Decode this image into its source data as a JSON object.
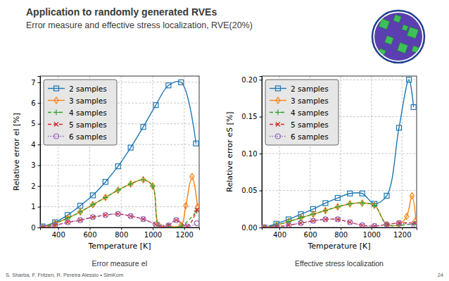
{
  "header": {
    "title": "Application to randomly generated RVEs",
    "subtitle": "Error measure and effective stress localization, RVE(20%)"
  },
  "footer": {
    "authors": "S. Sharba, F. Fritzen, R. Pereira Alessio • SimKom",
    "page": 24
  },
  "chart_data": [
    {
      "type": "line",
      "caption": "Error measure eI",
      "xlabel": "Temperature [K]",
      "ylabel": "Relative error eI [%]",
      "xlim": [
        285,
        1295
      ],
      "xticks": [
        400,
        600,
        800,
        1000,
        1200
      ],
      "ylim": [
        0,
        7.3
      ],
      "yticks": [
        0,
        1,
        2,
        3,
        4,
        5,
        6,
        7
      ],
      "grid": true,
      "legend": "upper left",
      "series": [
        {
          "name": "2 samples",
          "color": "#1f77b4",
          "marker": "square",
          "line_style": "solid",
          "x": [
            300,
            380,
            460,
            540,
            620,
            700,
            780,
            860,
            940,
            1020,
            1100,
            1180,
            1275
          ],
          "values": [
            0.05,
            0.25,
            0.6,
            1.05,
            1.55,
            2.2,
            2.95,
            3.85,
            4.85,
            5.9,
            6.85,
            7.0,
            4.05
          ]
        },
        {
          "name": "3 samples",
          "color": "#ff7f0e",
          "marker": "diamond",
          "line_style": "solid",
          "x": [
            300,
            380,
            460,
            540,
            620,
            700,
            780,
            860,
            940,
            1000,
            1040,
            1100,
            1180,
            1210,
            1250,
            1285
          ],
          "values": [
            0.0,
            0.2,
            0.45,
            0.75,
            1.1,
            1.45,
            1.8,
            2.1,
            2.3,
            2.0,
            0.1,
            0.05,
            0.1,
            1.05,
            2.45,
            1.0
          ]
        },
        {
          "name": "4 samples",
          "color": "#2ca02c",
          "marker": "plus",
          "line_style": "dashed",
          "x": [
            300,
            380,
            460,
            540,
            620,
            700,
            780,
            860,
            940,
            1000,
            1040,
            1100,
            1180,
            1280
          ],
          "values": [
            0.0,
            0.2,
            0.45,
            0.75,
            1.1,
            1.45,
            1.8,
            2.1,
            2.3,
            2.0,
            0.1,
            0.05,
            0.05,
            0.8
          ]
        },
        {
          "name": "5 samples",
          "color": "#d62728",
          "marker": "x",
          "line_style": "dashed",
          "x": [
            300,
            380,
            460,
            540,
            620,
            700,
            780,
            860,
            940,
            1020,
            1060,
            1100,
            1150,
            1220,
            1280
          ],
          "values": [
            0.0,
            0.1,
            0.25,
            0.35,
            0.5,
            0.6,
            0.65,
            0.55,
            0.4,
            0.15,
            0.0,
            0.1,
            0.35,
            0.05,
            0.85
          ]
        },
        {
          "name": "6 samples",
          "color": "#9467bd",
          "marker": "circle",
          "line_style": "dotted",
          "x": [
            300,
            380,
            460,
            540,
            620,
            700,
            780,
            860,
            940,
            1020,
            1060,
            1100,
            1150,
            1220,
            1280
          ],
          "values": [
            0.0,
            0.1,
            0.25,
            0.35,
            0.5,
            0.6,
            0.65,
            0.55,
            0.4,
            0.15,
            0.0,
            0.1,
            0.35,
            0.05,
            0.2
          ]
        }
      ]
    },
    {
      "type": "line",
      "caption": "Effective stress localization",
      "xlabel": "Temperature [K]",
      "ylabel": "Relative error eS [%]",
      "xlim": [
        285,
        1295
      ],
      "xticks": [
        400,
        600,
        800,
        1000,
        1200
      ],
      "ylim": [
        0,
        0.205
      ],
      "yticks": [
        {
          "value": 0,
          "label": "0.00"
        },
        {
          "value": 0.05,
          "label": "0.05"
        },
        {
          "value": 0.1,
          "label": "0.10"
        },
        {
          "value": 0.15,
          "label": "0.15"
        },
        {
          "value": 0.2,
          "label": "0.20"
        }
      ],
      "grid": true,
      "legend": "upper left",
      "series": [
        {
          "name": "2 samples",
          "color": "#1f77b4",
          "marker": "square",
          "line_style": "solid",
          "x": [
            300,
            380,
            460,
            540,
            620,
            700,
            780,
            860,
            940,
            1020,
            1100,
            1180,
            1245,
            1275
          ],
          "values": [
            0.0,
            0.005,
            0.011,
            0.018,
            0.025,
            0.033,
            0.04,
            0.046,
            0.046,
            0.032,
            0.043,
            0.135,
            0.2,
            0.163
          ]
        },
        {
          "name": "3 samples",
          "color": "#ff7f0e",
          "marker": "diamond",
          "line_style": "solid",
          "x": [
            300,
            380,
            460,
            540,
            620,
            700,
            780,
            860,
            940,
            1020,
            1100,
            1180,
            1230,
            1265,
            1290
          ],
          "values": [
            0.0,
            0.003,
            0.008,
            0.013,
            0.018,
            0.023,
            0.028,
            0.032,
            0.033,
            0.03,
            0.004,
            0.004,
            0.015,
            0.043,
            0.01
          ]
        },
        {
          "name": "4 samples",
          "color": "#2ca02c",
          "marker": "plus",
          "line_style": "dashed",
          "x": [
            300,
            380,
            460,
            540,
            620,
            700,
            780,
            860,
            940,
            1020,
            1100,
            1180,
            1280
          ],
          "values": [
            0.0,
            0.003,
            0.008,
            0.013,
            0.018,
            0.023,
            0.028,
            0.032,
            0.033,
            0.03,
            0.004,
            0.003,
            0.005
          ]
        },
        {
          "name": "5 samples",
          "color": "#d62728",
          "marker": "x",
          "line_style": "dashed",
          "x": [
            300,
            380,
            460,
            540,
            620,
            700,
            780,
            860,
            940,
            1020,
            1100,
            1180,
            1280
          ],
          "values": [
            0.0,
            0.001,
            0.003,
            0.006,
            0.009,
            0.011,
            0.011,
            0.007,
            0.003,
            0.002,
            0.004,
            0.006,
            0.006
          ]
        },
        {
          "name": "6 samples",
          "color": "#9467bd",
          "marker": "circle",
          "line_style": "dotted",
          "x": [
            300,
            380,
            460,
            540,
            620,
            700,
            780,
            860,
            940,
            1020,
            1100,
            1180,
            1280
          ],
          "values": [
            0.0,
            0.001,
            0.003,
            0.006,
            0.009,
            0.011,
            0.011,
            0.007,
            0.003,
            0.002,
            0.004,
            0.006,
            0.003
          ]
        }
      ]
    }
  ]
}
